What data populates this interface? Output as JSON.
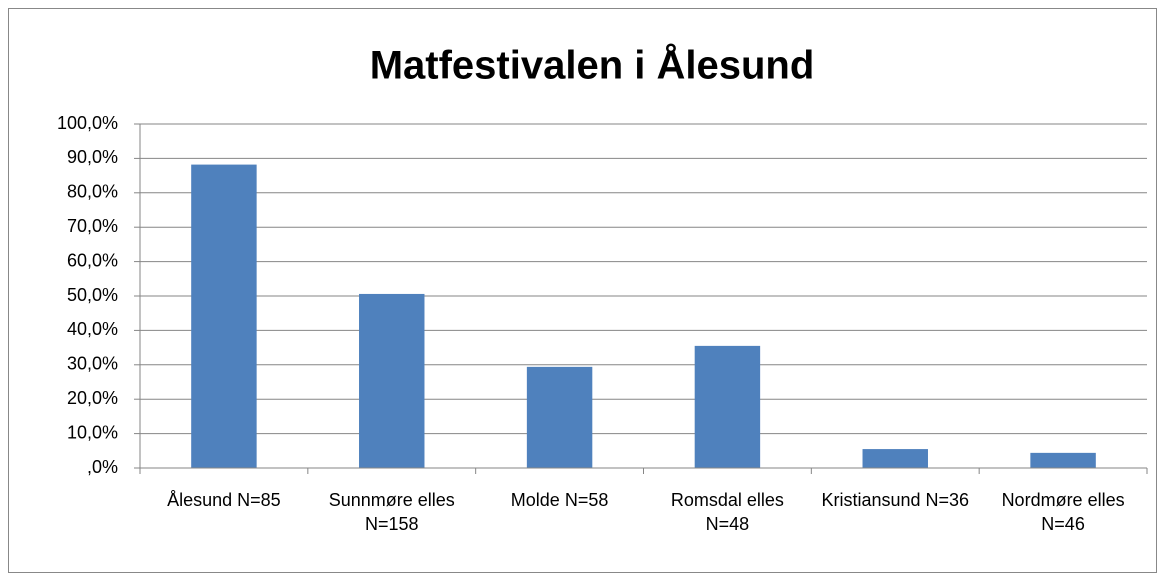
{
  "chart_data": {
    "type": "bar",
    "title": "Matfestivalen i Ålesund",
    "categories": [
      "Ålesund N=85",
      "Sunnmøre elles N=158",
      "Molde N=58",
      "Romsdal elles N=48",
      "Kristiansund N=36",
      "Nordmøre elles N=46"
    ],
    "values": [
      88.2,
      50.6,
      29.4,
      35.5,
      5.5,
      4.4
    ],
    "color": "#4f81bd",
    "ylim": [
      0,
      100
    ],
    "yticks": [
      {
        "value": 0,
        "label": ",0%"
      },
      {
        "value": 10,
        "label": "10,0%"
      },
      {
        "value": 20,
        "label": "20,0%"
      },
      {
        "value": 30,
        "label": "30,0%"
      },
      {
        "value": 40,
        "label": "40,0%"
      },
      {
        "value": 50,
        "label": "50,0%"
      },
      {
        "value": 60,
        "label": "60,0%"
      },
      {
        "value": 70,
        "label": "70,0%"
      },
      {
        "value": 80,
        "label": "80,0%"
      },
      {
        "value": 90,
        "label": "90,0%"
      },
      {
        "value": 100,
        "label": "100,0%"
      }
    ],
    "grid": true
  }
}
